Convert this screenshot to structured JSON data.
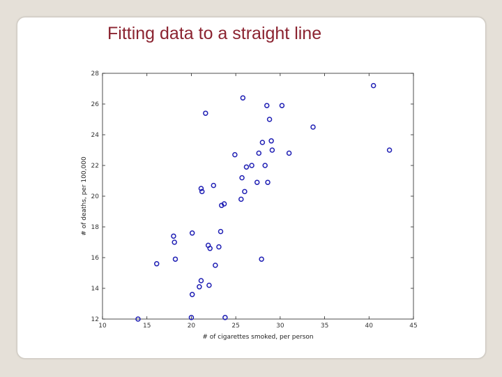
{
  "slide": {
    "title": "Fitting data to a straight line"
  },
  "chart_data": {
    "type": "scatter",
    "title": "",
    "xlabel": "# of cigarettes smoked, per person",
    "ylabel": "# of deaths, per 100,000",
    "xlim": [
      10,
      45
    ],
    "ylim": [
      12,
      28
    ],
    "xticks": [
      10,
      15,
      20,
      25,
      30,
      35,
      40,
      45
    ],
    "yticks": [
      12,
      14,
      16,
      18,
      20,
      22,
      24,
      26,
      28
    ],
    "grid": false,
    "marker_color": "#1f1fb4",
    "x": [
      14.0,
      16.1,
      18.0,
      18.1,
      18.2,
      20.0,
      20.1,
      20.1,
      20.9,
      21.1,
      21.1,
      21.2,
      21.6,
      21.9,
      22.0,
      22.1,
      22.5,
      22.7,
      23.1,
      23.3,
      23.4,
      23.7,
      23.8,
      24.9,
      25.6,
      25.7,
      25.8,
      26.0,
      26.2,
      26.8,
      27.4,
      27.6,
      27.9,
      28.0,
      28.3,
      28.5,
      28.6,
      28.8,
      29.0,
      29.1,
      30.2,
      31.0,
      33.7,
      40.5,
      42.3
    ],
    "y": [
      12.0,
      15.6,
      17.4,
      17.0,
      15.9,
      12.1,
      17.6,
      13.6,
      14.1,
      14.5,
      20.5,
      20.3,
      25.4,
      16.8,
      14.2,
      16.6,
      20.7,
      15.5,
      16.7,
      17.7,
      19.4,
      19.5,
      12.1,
      22.7,
      19.8,
      21.2,
      26.4,
      20.3,
      21.9,
      22.0,
      20.9,
      22.8,
      15.9,
      23.5,
      22.0,
      25.9,
      20.9,
      25.0,
      23.6,
      23.0,
      25.9,
      22.8,
      24.5,
      27.2,
      23.0
    ]
  }
}
